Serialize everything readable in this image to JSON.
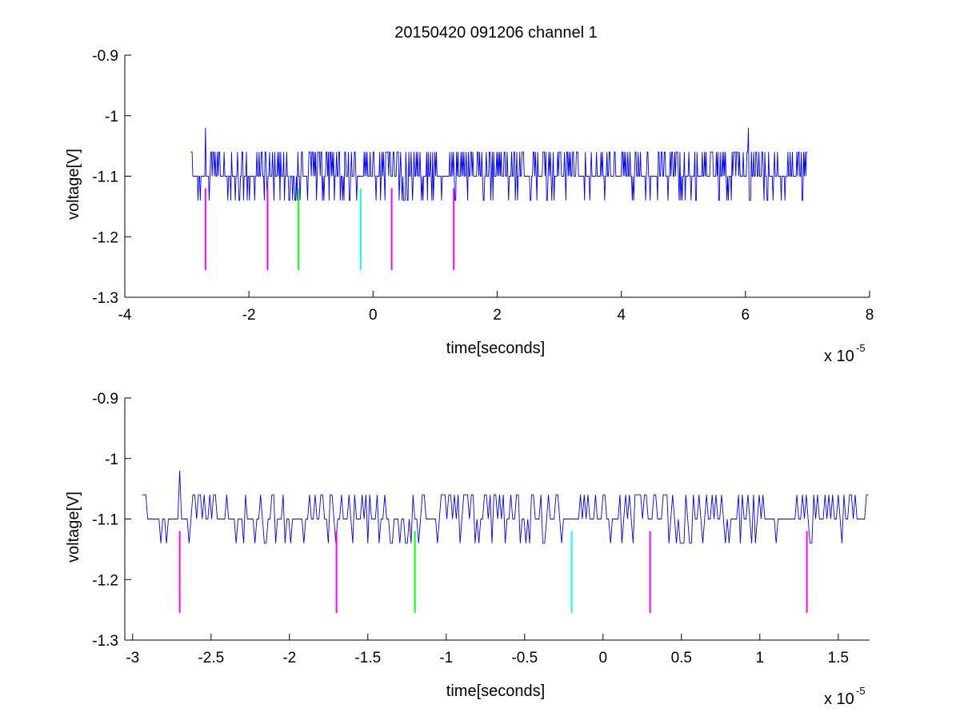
{
  "chart_data": [
    {
      "type": "line",
      "title": "20150420 091206 channel 1",
      "xlabel": "time[seconds]",
      "ylabel": "voltage[V]",
      "x_scale_label": "x 10",
      "x_scale_exponent": "-5",
      "xlim": [
        -4,
        8
      ],
      "ylim": [
        -1.3,
        -0.9
      ],
      "xticks": [
        -4,
        -2,
        0,
        2,
        4,
        6,
        8
      ],
      "xtick_labels": [
        "-4",
        "-2",
        "0",
        "2",
        "4",
        "6",
        "8"
      ],
      "yticks": [
        -0.9,
        -1,
        -1.1,
        -1.2,
        -1.3
      ],
      "ytick_labels": [
        "-0.9",
        "-1",
        "-1.1",
        "-1.2",
        "-1.3"
      ],
      "grid": false,
      "series": [
        {
          "color": "#0000ff",
          "description_segments": [
            {
              "x": [
                -2.94,
                -2.94,
                -2.93,
                -2.92,
                -2.9,
                -2.8,
                -2.72,
                -2.71,
                -2.7,
                -2.69,
                -2.68,
                -2.6,
                -2.55,
                -2.5,
                -2.45,
                -2.4,
                -2.35,
                -2.3
              ]
            }
          ]
        }
      ],
      "markers": [
        {
          "x": -2.7,
          "color": "#ff00ff",
          "y": [
            -1.12,
            -1.255
          ]
        },
        {
          "x": -1.7,
          "color": "#ff00ff",
          "y": [
            -1.12,
            -1.255
          ]
        },
        {
          "x": -1.2,
          "color": "#00ff00",
          "y": [
            -1.12,
            -1.255
          ]
        },
        {
          "x": -0.2,
          "color": "#00ffff",
          "y": [
            -1.12,
            -1.255
          ]
        },
        {
          "x": 0.3,
          "color": "#ff00ff",
          "y": [
            -1.12,
            -1.255
          ]
        },
        {
          "x": 1.3,
          "color": "#ff00ff",
          "y": [
            -1.12,
            -1.255
          ]
        }
      ],
      "signal": {
        "x_start": -2.94,
        "x_end": 7.0,
        "baseline": -1.1,
        "high": -1.06,
        "low": -1.14,
        "spikes": [
          {
            "x": -2.7,
            "y": -1.02
          },
          {
            "x": 6.05,
            "y": -1.02
          }
        ],
        "flat_start": [
          -2.94,
          -2.65
        ]
      }
    },
    {
      "type": "line",
      "title": "",
      "xlabel": "time[seconds]",
      "ylabel": "voltage[V]",
      "x_scale_label": "x 10",
      "x_scale_exponent": "-5",
      "xlim": [
        -3.05,
        1.7
      ],
      "ylim": [
        -1.3,
        -0.9
      ],
      "xticks": [
        -3,
        -2.5,
        -2,
        -1.5,
        -1,
        -0.5,
        0,
        0.5,
        1,
        1.5
      ],
      "xtick_labels": [
        "-3",
        "-2.5",
        "-2",
        "-1.5",
        "-1",
        "-0.5",
        "0",
        "0.5",
        "1",
        "1.5"
      ],
      "yticks": [
        -0.9,
        -1,
        -1.1,
        -1.2,
        -1.3
      ],
      "ytick_labels": [
        "-0.9",
        "-1",
        "-1.1",
        "-1.2",
        "-1.3"
      ],
      "grid": false,
      "markers": [
        {
          "x": -2.7,
          "color": "#ff00ff",
          "y": [
            -1.12,
            -1.255
          ]
        },
        {
          "x": -1.7,
          "color": "#ff00ff",
          "y": [
            -1.12,
            -1.255
          ]
        },
        {
          "x": -1.2,
          "color": "#00ff00",
          "y": [
            -1.12,
            -1.255
          ]
        },
        {
          "x": -0.2,
          "color": "#00ffff",
          "y": [
            -1.12,
            -1.255
          ]
        },
        {
          "x": 0.3,
          "color": "#ff00ff",
          "y": [
            -1.12,
            -1.255
          ]
        },
        {
          "x": 1.3,
          "color": "#ff00ff",
          "y": [
            -1.12,
            -1.255
          ]
        }
      ],
      "signal": {
        "x_start": -2.94,
        "x_end": 1.7,
        "baseline": -1.1,
        "high": -1.06,
        "low": -1.14,
        "spikes": [
          {
            "x": -2.7,
            "y": -1.02
          }
        ],
        "flat_start": [
          -2.94,
          -2.65
        ]
      }
    }
  ]
}
